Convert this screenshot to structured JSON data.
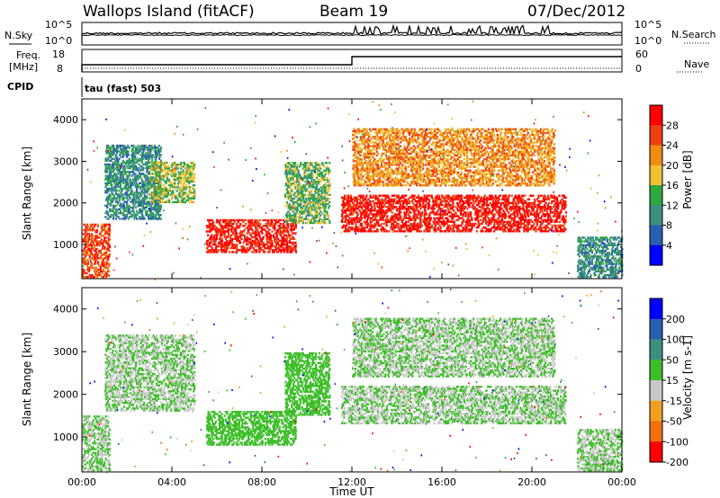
{
  "header": {
    "site": "Wallops Island (fitACF)",
    "beam": "Beam 19",
    "date": "07/Dec/2012"
  },
  "param_labels": {
    "nsky": "N.Sky",
    "nsky_top": "10^5",
    "nsky_bottom": "10^0",
    "nsearch": "N.Search",
    "nsearch_top": "10^5",
    "nsearch_bottom": "10^0",
    "freq_line1": "Freq.",
    "freq_line2": "[MHz]",
    "freq_top": "18",
    "freq_bottom": "8",
    "nave": "Nave",
    "nave_top": "60",
    "nave_bottom": "0",
    "cpid": "CPID",
    "cpid_value": "tau (fast) 503"
  },
  "chart_data": [
    {
      "type": "heatmap",
      "name": "power",
      "ylabel": "Slant Range [km]",
      "yticks": [
        "1000",
        "2000",
        "3000",
        "4000"
      ],
      "colorbar_label": "Power [dB]",
      "colorbar_ticks": [
        "4",
        "8",
        "12",
        "16",
        "20",
        "24",
        "28"
      ],
      "colors": [
        "#0000ff",
        "#2a5fb0",
        "#3d9080",
        "#2ea840",
        "#f0c030",
        "#f08c10",
        "#f04010",
        "#ff0000"
      ],
      "colorbar_range": [
        0,
        32
      ],
      "grid": false,
      "echo_regions": [
        {
          "t": [
            0.0,
            1.2
          ],
          "range": [
            200,
            1500
          ],
          "power": 26
        },
        {
          "t": [
            1.0,
            3.5
          ],
          "range": [
            1600,
            3400
          ],
          "power": 10
        },
        {
          "t": [
            3.0,
            5.0
          ],
          "range": [
            2000,
            3000
          ],
          "power": 16
        },
        {
          "t": [
            5.5,
            9.5
          ],
          "range": [
            800,
            1600
          ],
          "power": 29
        },
        {
          "t": [
            9.0,
            11.0
          ],
          "range": [
            1500,
            3000
          ],
          "power": 14
        },
        {
          "t": [
            11.5,
            21.5
          ],
          "range": [
            1300,
            2200
          ],
          "power": 30
        },
        {
          "t": [
            12.0,
            21.0
          ],
          "range": [
            2400,
            3800
          ],
          "power": 22
        },
        {
          "t": [
            22.0,
            24.0
          ],
          "range": [
            200,
            1200
          ],
          "power": 10
        }
      ]
    },
    {
      "type": "heatmap",
      "name": "velocity",
      "ylabel": "Slant Range [km]",
      "yticks": [
        "1000",
        "2000",
        "3000",
        "4000"
      ],
      "colorbar_label": "Velocity [m s-1]",
      "colorbar_ticks": [
        "200",
        "100",
        "50",
        "15",
        "-15",
        "-50",
        "-100",
        "-200"
      ],
      "colors": [
        "#0000ff",
        "#2a5fb0",
        "#3d9080",
        "#3dbe28",
        "#c8c8c8",
        "#f0a020",
        "#f07010",
        "#ff0000"
      ],
      "grid": false,
      "echo_regions": [
        {
          "t": [
            0.0,
            1.2
          ],
          "range": [
            200,
            1500
          ],
          "velocity": 0
        },
        {
          "t": [
            1.0,
            5.0
          ],
          "range": [
            1600,
            3400
          ],
          "velocity": 0
        },
        {
          "t": [
            5.5,
            9.5
          ],
          "range": [
            800,
            1600
          ],
          "velocity": 35
        },
        {
          "t": [
            9.0,
            11.0
          ],
          "range": [
            1500,
            3000
          ],
          "velocity": 35
        },
        {
          "t": [
            11.5,
            21.5
          ],
          "range": [
            1300,
            2200
          ],
          "velocity": 0
        },
        {
          "t": [
            12.0,
            21.0
          ],
          "range": [
            2400,
            3800
          ],
          "velocity": 0
        },
        {
          "t": [
            22.0,
            24.0
          ],
          "range": [
            200,
            1200
          ],
          "velocity": 0
        }
      ]
    }
  ],
  "x_axis": {
    "label": "Time UT",
    "ticks": [
      "00:00",
      "04:00",
      "08:00",
      "12:00",
      "16:00",
      "20:00",
      "00:00"
    ]
  }
}
